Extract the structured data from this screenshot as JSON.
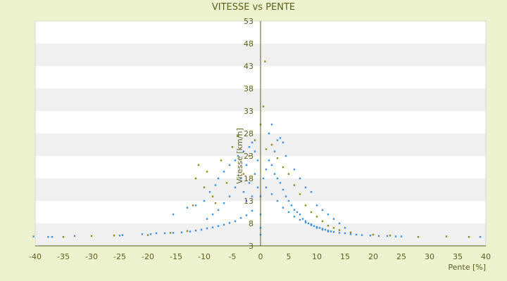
{
  "chart_data": {
    "type": "scatter",
    "title": "VITESSE vs PENTE",
    "xlabel": "Pente [%]",
    "ylabel": "Vitesse [km/h]",
    "xlim": [
      -40,
      40
    ],
    "ylim": [
      3,
      53
    ],
    "x_ticks": [
      -40,
      -35,
      -30,
      -25,
      -20,
      -15,
      -10,
      -5,
      0,
      5,
      10,
      15,
      20,
      25,
      30,
      35,
      40
    ],
    "y_ticks": [
      3,
      8,
      13,
      18,
      23,
      28,
      33,
      38,
      43,
      48,
      53
    ],
    "grid": "horizontal alternating bands",
    "legend": "none",
    "colors": {
      "page_background": "#edf2cf",
      "band_light": "#ffffff",
      "band_dark": "#f0f0f0",
      "series_blue": "#3d8fd6",
      "series_olive": "#8f8a14",
      "axis": "#5a5f1c"
    },
    "series": [
      {
        "points": [
          [
            -40.3,
            5.1
          ],
          [
            -37.7,
            5.0
          ],
          [
            -37.0,
            5.0
          ],
          [
            -33.0,
            5.2
          ],
          [
            -25.0,
            5.3
          ],
          [
            -24.5,
            5.4
          ],
          [
            -21.0,
            5.6
          ],
          [
            -19.5,
            5.6
          ],
          [
            -18.5,
            5.8
          ],
          [
            -17.0,
            5.8
          ],
          [
            -15.5,
            5.9
          ],
          [
            -14.0,
            6.0
          ],
          [
            -12.5,
            6.2
          ],
          [
            -11.5,
            6.4
          ],
          [
            -10.5,
            6.6
          ],
          [
            -9.5,
            6.9
          ],
          [
            -8.5,
            7.1
          ],
          [
            -7.5,
            7.4
          ],
          [
            -6.5,
            7.7
          ],
          [
            -5.5,
            8.1
          ],
          [
            -4.5,
            8.5
          ],
          [
            -3.5,
            9.2
          ],
          [
            -2.5,
            9.8
          ],
          [
            -1.5,
            10.8
          ],
          [
            -15.5,
            10.0
          ],
          [
            -13.0,
            11.5
          ],
          [
            -11.5,
            12.0
          ],
          [
            -10.0,
            13.0
          ],
          [
            -9.0,
            15.0
          ],
          [
            -8.0,
            16.5
          ],
          [
            -7.5,
            18.0
          ],
          [
            -6.5,
            19.5
          ],
          [
            -5.5,
            21.0
          ],
          [
            -4.5,
            22.0
          ],
          [
            -4.0,
            23.0
          ],
          [
            -3.0,
            24.0
          ],
          [
            -2.0,
            25.0
          ],
          [
            -1.5,
            26.0
          ],
          [
            -1.0,
            24.0
          ],
          [
            -0.5,
            22.0
          ],
          [
            -2.5,
            21.0
          ],
          [
            -3.5,
            18.0
          ],
          [
            -4.5,
            16.0
          ],
          [
            -5.5,
            14.0
          ],
          [
            -6.5,
            12.5
          ],
          [
            -7.5,
            11.0
          ],
          [
            -8.5,
            10.0
          ],
          [
            -9.5,
            9.0
          ],
          [
            -3.0,
            15.0
          ],
          [
            -2.0,
            17.0
          ],
          [
            -1.0,
            19.0
          ],
          [
            -2.5,
            13.0
          ],
          [
            -1.5,
            14.0
          ],
          [
            -0.5,
            16.0
          ],
          [
            0.0,
            14.0
          ],
          [
            0.0,
            10.0
          ],
          [
            0.0,
            7.0
          ],
          [
            0.0,
            5.5
          ],
          [
            0.5,
            18.0
          ],
          [
            1.0,
            20.0
          ],
          [
            1.5,
            22.0
          ],
          [
            2.0,
            21.0
          ],
          [
            2.5,
            19.0
          ],
          [
            3.0,
            18.0
          ],
          [
            3.5,
            17.0
          ],
          [
            4.0,
            15.5
          ],
          [
            4.5,
            14.0
          ],
          [
            5.0,
            13.0
          ],
          [
            5.5,
            12.0
          ],
          [
            6.0,
            11.0
          ],
          [
            6.5,
            10.5
          ],
          [
            7.0,
            10.0
          ],
          [
            7.5,
            9.0
          ],
          [
            8.0,
            8.5
          ],
          [
            8.5,
            8.0
          ],
          [
            9.0,
            7.8
          ],
          [
            9.5,
            7.4
          ],
          [
            10.0,
            7.2
          ],
          [
            10.5,
            7.0
          ],
          [
            11.0,
            6.8
          ],
          [
            11.5,
            6.6
          ],
          [
            12.0,
            6.4
          ],
          [
            12.5,
            6.2
          ],
          [
            13.0,
            6.1
          ],
          [
            14.0,
            5.9
          ],
          [
            15.0,
            5.8
          ],
          [
            16.0,
            5.6
          ],
          [
            17.0,
            5.5
          ],
          [
            18.0,
            5.4
          ],
          [
            19.5,
            5.3
          ],
          [
            21.0,
            5.2
          ],
          [
            22.5,
            5.2
          ],
          [
            24.0,
            5.1
          ],
          [
            25.0,
            5.1
          ],
          [
            39.0,
            5.0
          ],
          [
            1.0,
            16.0
          ],
          [
            2.0,
            14.5
          ],
          [
            3.0,
            13.0
          ],
          [
            4.0,
            11.5
          ],
          [
            5.0,
            10.5
          ],
          [
            6.0,
            9.5
          ],
          [
            7.0,
            8.8
          ],
          [
            8.0,
            8.2
          ],
          [
            9.0,
            7.6
          ],
          [
            10.0,
            7.0
          ],
          [
            11.0,
            6.6
          ],
          [
            12.0,
            6.2
          ],
          [
            2.5,
            24.0
          ],
          [
            3.0,
            26.5
          ],
          [
            4.0,
            26.0
          ],
          [
            1.5,
            28.0
          ],
          [
            2.0,
            30.0
          ],
          [
            3.5,
            27.0
          ],
          [
            4.5,
            23.0
          ],
          [
            6.0,
            20.0
          ],
          [
            7.0,
            18.0
          ],
          [
            8.0,
            16.0
          ],
          [
            9.0,
            15.0
          ],
          [
            10.0,
            12.0
          ],
          [
            11.0,
            11.0
          ],
          [
            12.0,
            10.0
          ],
          [
            13.0,
            9.0
          ],
          [
            14.0,
            8.0
          ],
          [
            15.0,
            7.0
          ]
        ]
      },
      {
        "points": [
          [
            -35.0,
            5.0
          ],
          [
            -30.0,
            5.2
          ],
          [
            -26.0,
            5.3
          ],
          [
            -20.0,
            5.4
          ],
          [
            -16.0,
            5.9
          ],
          [
            -13.0,
            6.3
          ],
          [
            -12.0,
            12.0
          ],
          [
            -11.5,
            18.0
          ],
          [
            -11.0,
            21.0
          ],
          [
            -10.0,
            16.0
          ],
          [
            -9.5,
            19.5
          ],
          [
            -8.5,
            14.0
          ],
          [
            -8.0,
            12.5
          ],
          [
            -7.0,
            22.0
          ],
          [
            -6.0,
            17.0
          ],
          [
            -5.0,
            25.0
          ],
          [
            -4.0,
            27.5
          ],
          [
            -3.0,
            19.0
          ],
          [
            -2.0,
            23.0
          ],
          [
            -1.0,
            26.5
          ],
          [
            0.0,
            30.0
          ],
          [
            0.5,
            34.0
          ],
          [
            0.8,
            44.0
          ],
          [
            1.0,
            24.5
          ],
          [
            2.0,
            25.5
          ],
          [
            3.0,
            22.5
          ],
          [
            4.0,
            20.5
          ],
          [
            5.0,
            19.0
          ],
          [
            6.0,
            16.5
          ],
          [
            7.0,
            14.5
          ],
          [
            8.0,
            12.0
          ],
          [
            9.0,
            10.5
          ],
          [
            10.0,
            9.5
          ],
          [
            11.0,
            8.5
          ],
          [
            12.0,
            7.5
          ],
          [
            13.0,
            7.0
          ],
          [
            14.0,
            6.5
          ],
          [
            16.0,
            6.0
          ],
          [
            20.0,
            5.5
          ],
          [
            23.0,
            5.3
          ],
          [
            28.0,
            5.0
          ],
          [
            33.0,
            5.1
          ],
          [
            37.0,
            5.0
          ]
        ]
      }
    ]
  }
}
